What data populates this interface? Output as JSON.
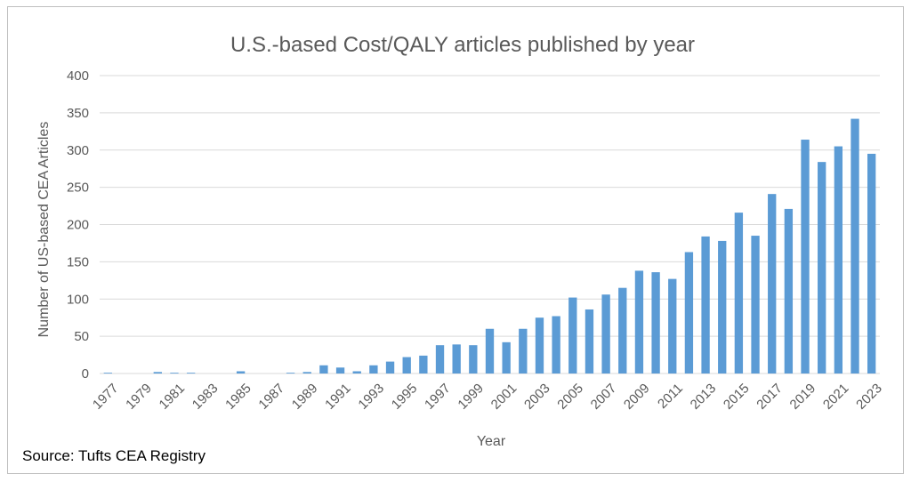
{
  "chart_data": {
    "type": "bar",
    "title": "U.S.-based Cost/QALY articles published by year",
    "xlabel": "Year",
    "ylabel": "Number of US-based CEA Articles",
    "ylim": [
      0,
      400
    ],
    "yticks": [
      0,
      50,
      100,
      150,
      200,
      250,
      300,
      350,
      400
    ],
    "grid": true,
    "legend": "none",
    "categories": [
      "1977",
      "1978",
      "1979",
      "1980",
      "1981",
      "1982",
      "1983",
      "1984",
      "1985",
      "1986",
      "1987",
      "1988",
      "1989",
      "1990",
      "1991",
      "1992",
      "1993",
      "1994",
      "1995",
      "1996",
      "1997",
      "1998",
      "1999",
      "2000",
      "2001",
      "2002",
      "2003",
      "2004",
      "2005",
      "2006",
      "2007",
      "2008",
      "2009",
      "2010",
      "2011",
      "2012",
      "2013",
      "2014",
      "2015",
      "2016",
      "2017",
      "2018",
      "2019",
      "2020",
      "2021",
      "2022",
      "2023"
    ],
    "tick_labels": [
      "1977",
      "1979",
      "1981",
      "1983",
      "1985",
      "1987",
      "1989",
      "1991",
      "1993",
      "1995",
      "1997",
      "1999",
      "2001",
      "2003",
      "2005",
      "2007",
      "2009",
      "2011",
      "2013",
      "2015",
      "2017",
      "2019",
      "2021",
      "2023"
    ],
    "values": [
      1,
      0,
      0,
      2,
      1,
      1,
      0,
      0,
      3,
      0,
      0,
      1,
      2,
      11,
      8,
      3,
      11,
      16,
      22,
      24,
      38,
      39,
      38,
      60,
      42,
      60,
      75,
      77,
      102,
      86,
      106,
      115,
      138,
      136,
      127,
      163,
      184,
      178,
      216,
      185,
      241,
      221,
      314,
      284,
      305,
      342,
      295
    ],
    "bar_color": "#5b9bd5"
  },
  "source": "Source: Tufts CEA Registry"
}
